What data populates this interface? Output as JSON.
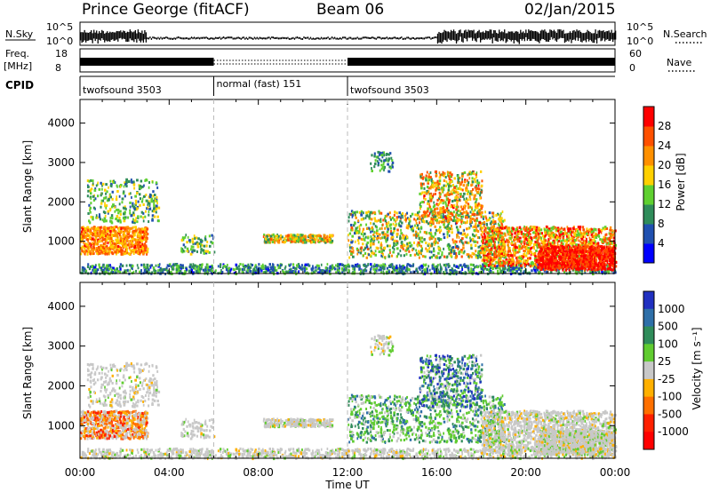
{
  "header": {
    "station": "Prince George (fitACF)",
    "beam": "Beam 06",
    "date": "02/Jan/2015"
  },
  "aux_labels": {
    "nsky": "N.Sky",
    "nsearch": "N.Search",
    "freq": "Freq.",
    "mhz": "[MHz]",
    "nave": "Nave",
    "cpid": "CPID",
    "nsky_ticks": [
      "10^5",
      "10^0"
    ],
    "nsearch_ticks": [
      "10^5",
      "10^0"
    ],
    "freq_ticks": [
      "18",
      "8"
    ],
    "nave_ticks": [
      "60",
      "0"
    ]
  },
  "cpid_segments": [
    {
      "label": "twofsound 3503",
      "start_hour": 0
    },
    {
      "label": "normal (fast) 151",
      "start_hour": 6
    },
    {
      "label": "twofsound 3503",
      "start_hour": 12
    }
  ],
  "chart_data": [
    {
      "type": "heatmap",
      "name": "power",
      "xlabel": "",
      "ylabel": "Slant Range [km]",
      "xlim": [
        0,
        24
      ],
      "ylim": [
        180,
        4600
      ],
      "yticks": [
        "1000",
        "2000",
        "3000",
        "4000"
      ],
      "yticks_values": [
        1000,
        2000,
        3000,
        4000
      ],
      "colorbar": {
        "label": "Power [dB]",
        "ticks": [
          "4",
          "8",
          "12",
          "16",
          "20",
          "24",
          "28"
        ],
        "tick_values": [
          4,
          8,
          12,
          16,
          20,
          24,
          28
        ],
        "range": [
          0,
          32
        ],
        "colors": [
          "#0000ff",
          "#2050b0",
          "#2f8c5a",
          "#5fd030",
          "#ffd000",
          "#ff9000",
          "#ff5000",
          "#ff0000"
        ]
      }
    },
    {
      "type": "heatmap",
      "name": "velocity",
      "xlabel": "Time UT",
      "ylabel": "Slant Range [km]",
      "xlim": [
        0,
        24
      ],
      "ylim": [
        180,
        4600
      ],
      "xticks": [
        "00:00",
        "04:00",
        "08:00",
        "12:00",
        "16:00",
        "20:00",
        "00:00"
      ],
      "xticks_values": [
        0,
        4,
        8,
        12,
        16,
        20,
        24
      ],
      "yticks": [
        "1000",
        "2000",
        "3000",
        "4000"
      ],
      "yticks_values": [
        1000,
        2000,
        3000,
        4000
      ],
      "colorbar": {
        "label": "Velocity [m s⁻¹]",
        "ticks": [
          "1000",
          "500",
          "100",
          "25",
          "-25",
          "-100",
          "-500",
          "-1000"
        ],
        "colors": [
          "#2030c0",
          "#2e6fa8",
          "#2f8c5a",
          "#60cc30",
          "#c8c8c8",
          "#ffb000",
          "#ff7000",
          "#ff2000",
          "#ff0000"
        ]
      }
    }
  ]
}
